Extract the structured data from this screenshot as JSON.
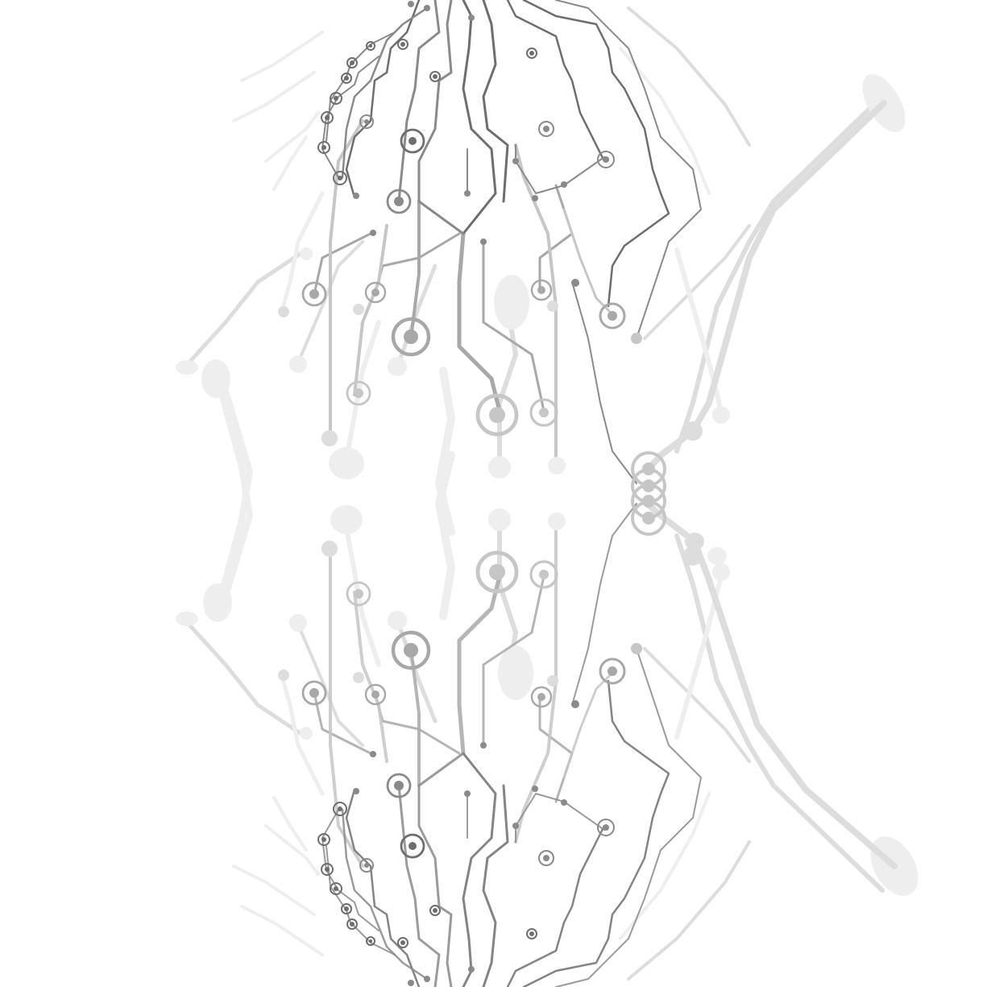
{
  "artwork": {
    "subject": "circuit-board-traces",
    "background_color": "#ffffff",
    "palette": [
      "#6e6e6e",
      "#8a8a8a",
      "#a8a8a8",
      "#c6c6c6",
      "#dddddd",
      "#eeeeee"
    ]
  }
}
